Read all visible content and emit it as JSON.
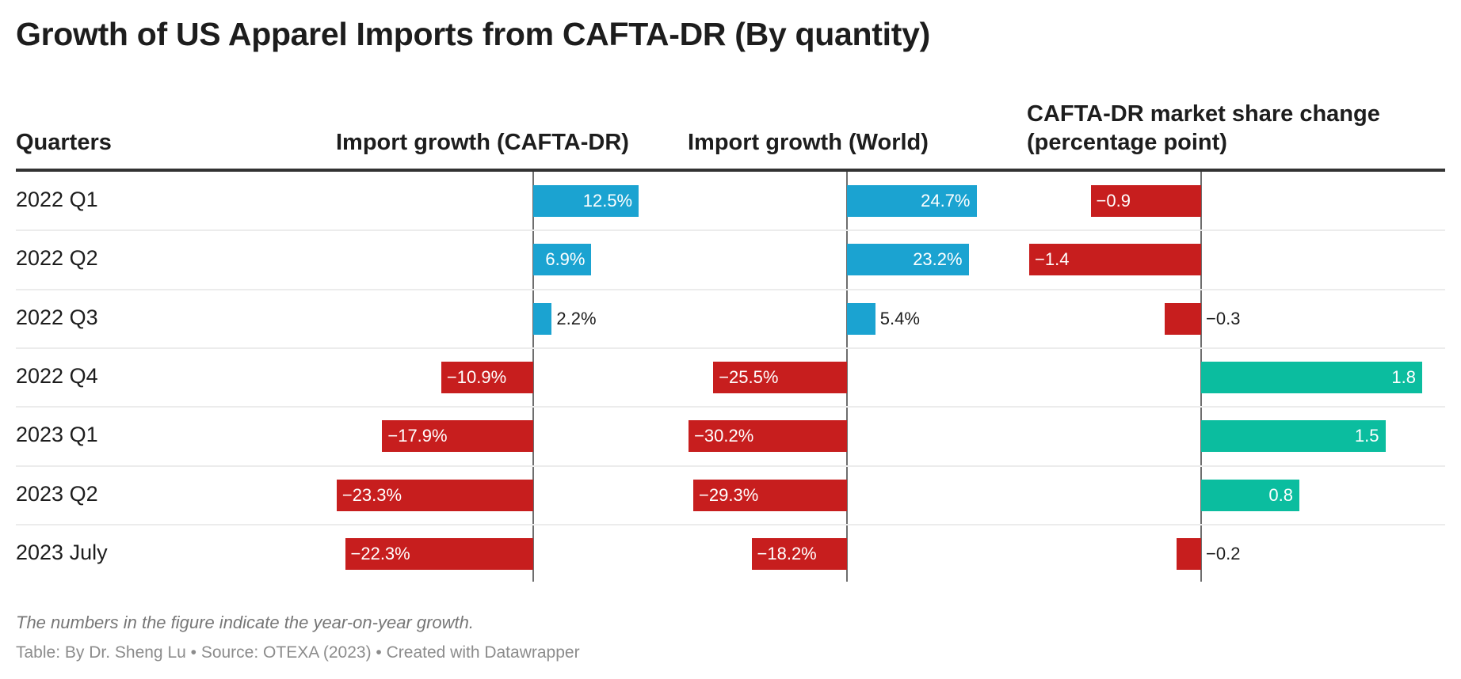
{
  "title": "Growth of US Apparel Imports from CAFTA-DR (By quantity)",
  "headers": {
    "quarters": "Quarters",
    "cafta": "Import growth (CAFTA-DR)",
    "world": "Import growth (World)",
    "share_line1": "CAFTA-DR market share change",
    "share_line2": "(percentage point)"
  },
  "colors": {
    "positive_growth": "#1ba3d1",
    "negative": "#c71e1e",
    "positive_share": "#0bbd9f"
  },
  "chart_data": {
    "type": "table",
    "title": "Growth of US Apparel Imports from CAFTA-DR (By quantity)",
    "categories": [
      "2022 Q1",
      "2022 Q2",
      "2022 Q3",
      "2022 Q4",
      "2023 Q1",
      "2023 Q2",
      "2023 July"
    ],
    "series": [
      {
        "name": "Import growth (CAFTA-DR)",
        "unit": "%",
        "values": [
          12.5,
          6.9,
          2.2,
          -10.9,
          -17.9,
          -23.3,
          -22.3
        ],
        "labels": [
          "12.5%",
          "6.9%",
          "2.2%",
          "−10.9%",
          "−17.9%",
          "−23.3%",
          "−22.3%"
        ]
      },
      {
        "name": "Import growth (World)",
        "unit": "%",
        "values": [
          24.7,
          23.2,
          5.4,
          -25.5,
          -30.2,
          -29.3,
          -18.2
        ],
        "labels": [
          "24.7%",
          "23.2%",
          "5.4%",
          "−25.5%",
          "−30.2%",
          "−29.3%",
          "−18.2%"
        ]
      },
      {
        "name": "CAFTA-DR market share change (percentage point)",
        "unit": "pp",
        "values": [
          -0.9,
          -1.4,
          -0.3,
          1.8,
          1.5,
          0.8,
          -0.2
        ],
        "labels": [
          "−0.9",
          "−1.4",
          "−0.3",
          "1.8",
          "1.5",
          "0.8",
          "−0.2"
        ]
      }
    ]
  },
  "footer": {
    "note": "The numbers in the figure indicate the year-on-year growth.",
    "source": "Table: By Dr. Sheng Lu • Source: OTEXA (2023) • Created with Datawrapper"
  }
}
